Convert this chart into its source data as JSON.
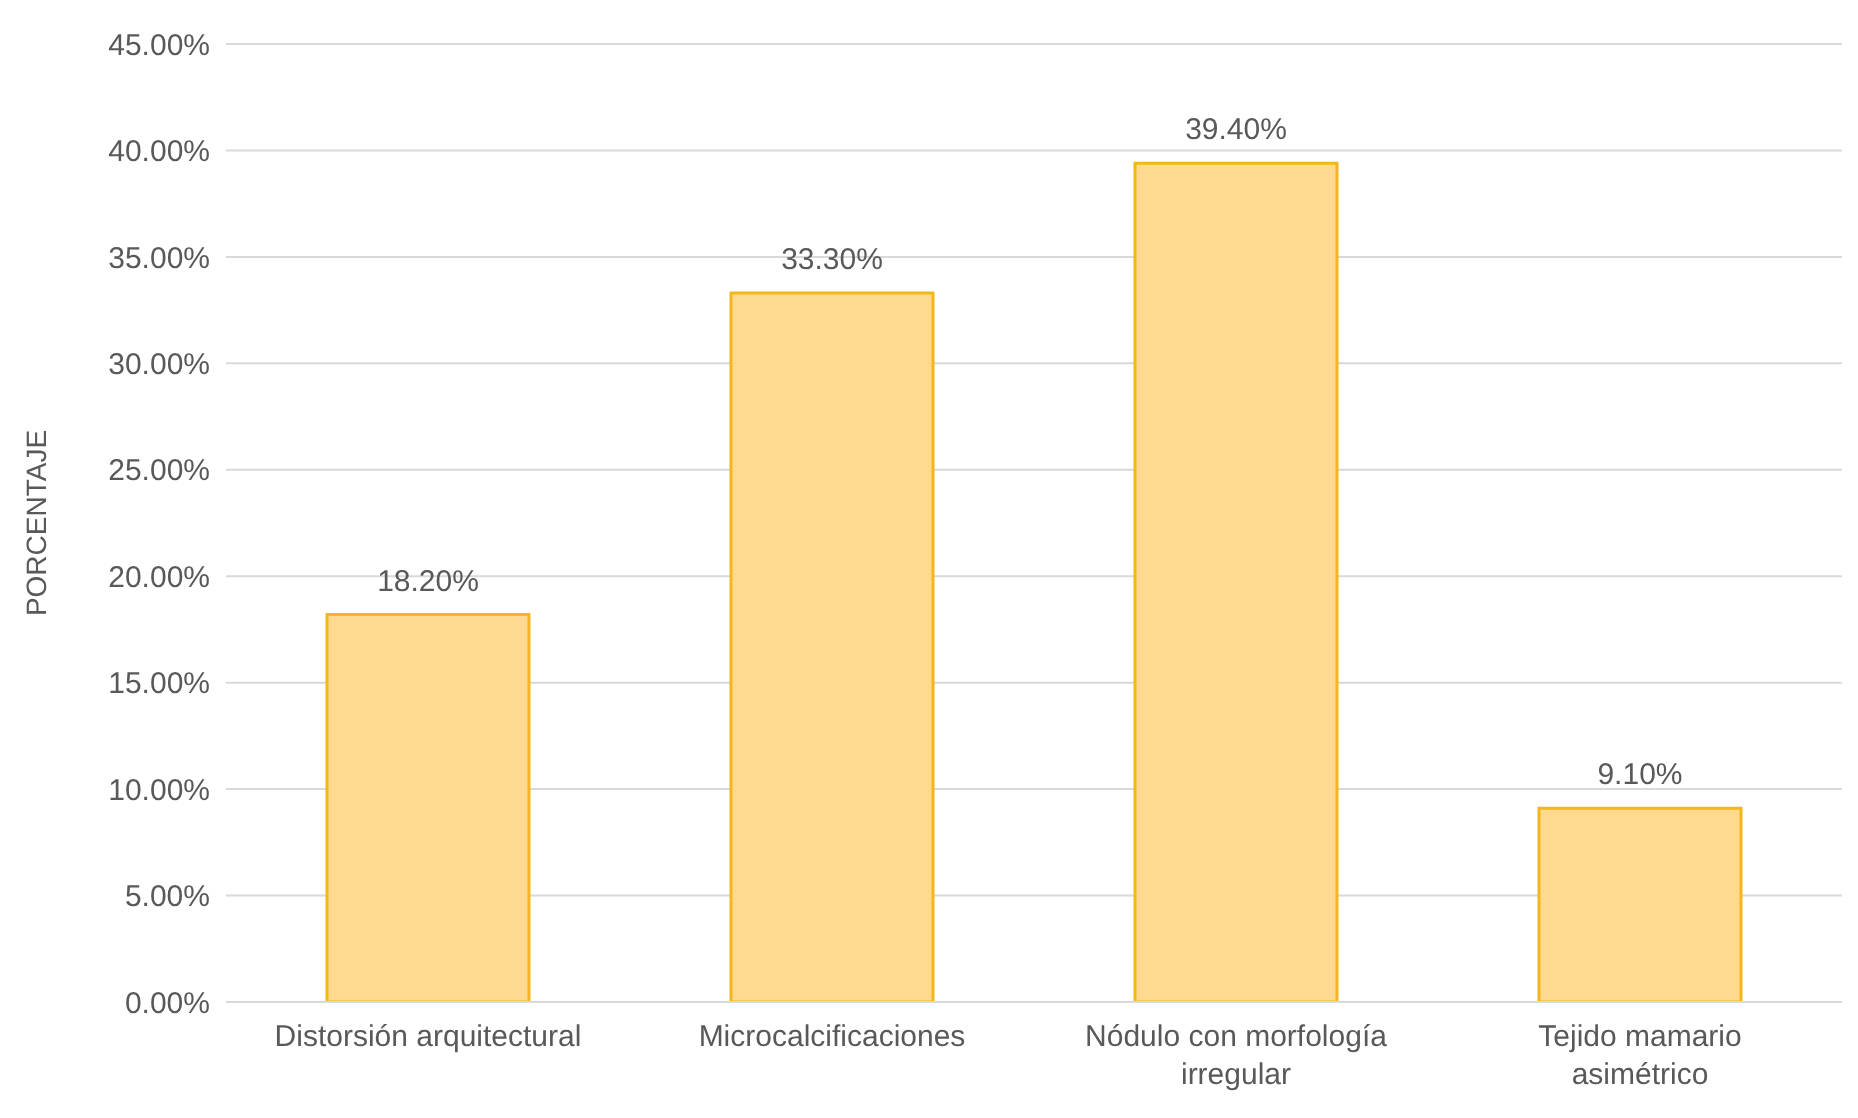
{
  "chart_data": {
    "type": "bar",
    "ylabel": "PORCENTAJE",
    "categories": [
      "Distorsión arquitectural",
      "Microcalcificaciones",
      "Nódulo con morfología irregular",
      "Tejido mamario asimétrico"
    ],
    "values": [
      18.2,
      33.3,
      39.4,
      9.1
    ],
    "value_labels": [
      "18.20%",
      "33.30%",
      "39.40%",
      "9.10%"
    ],
    "color": "#fed98f",
    "ylim": [
      0,
      45
    ],
    "yticks": [
      {
        "value": 0,
        "label": "0.00%"
      },
      {
        "value": 5,
        "label": "5.00%"
      },
      {
        "value": 10,
        "label": "10.00%"
      },
      {
        "value": 15,
        "label": "15.00%"
      },
      {
        "value": 20,
        "label": "20.00%"
      },
      {
        "value": 25,
        "label": "25.00%"
      },
      {
        "value": 30,
        "label": "30.00%"
      },
      {
        "value": 35,
        "label": "35.00%"
      },
      {
        "value": 40,
        "label": "40.00%"
      },
      {
        "value": 45,
        "label": "45.00%"
      }
    ],
    "grid": "y"
  }
}
